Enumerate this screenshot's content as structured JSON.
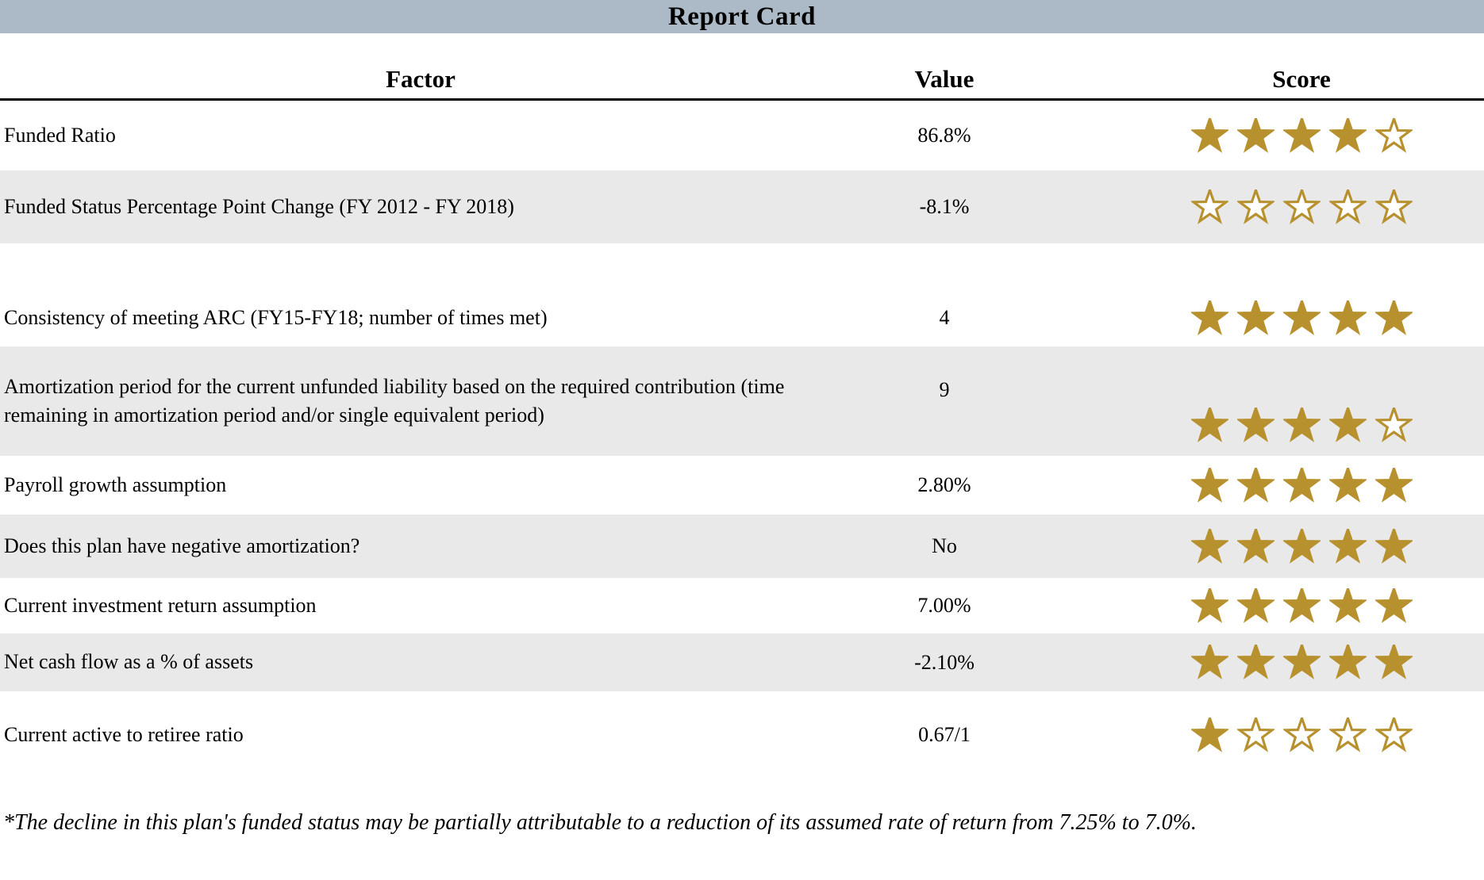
{
  "title": "Report Card",
  "accent_colors": {
    "title_bar_bg": "#acb9c7",
    "row_alt_bg": "#e9e9e9",
    "star_gold": "#b8912f"
  },
  "table": {
    "headers": [
      "Factor",
      "Value",
      "Score"
    ],
    "max_stars": 5,
    "rows": [
      {
        "factor": "Funded Ratio",
        "value": "86.8%",
        "score": 4
      },
      {
        "factor": "Funded Status Percentage Point Change (FY 2012 - FY 2018)",
        "value": "-8.1%",
        "score": 0
      },
      {
        "factor": "Consistency of meeting ARC (FY15-FY18; number of times met)",
        "value": "4",
        "score": 5
      },
      {
        "factor": "Amortization period for the current unfunded liability based on the required contribution (time remaining in amortization period and/or single equivalent period)",
        "value": "9",
        "score": 4
      },
      {
        "factor": "Payroll growth assumption",
        "value": "2.80%",
        "score": 5
      },
      {
        "factor": "Does this plan have negative amortization?",
        "value": "No",
        "score": 5
      },
      {
        "factor": "Current investment return assumption",
        "value": "7.00%",
        "score": 5
      },
      {
        "factor": "Net cash flow as a % of assets",
        "value": "-2.10%",
        "score": 5
      },
      {
        "factor": "Current active to retiree ratio",
        "value": "0.67/1",
        "score": 1
      }
    ]
  },
  "footnote": "*The decline in this plan's funded status may be partially attributable to a reduction of its assumed rate of return from 7.25% to 7.0%."
}
